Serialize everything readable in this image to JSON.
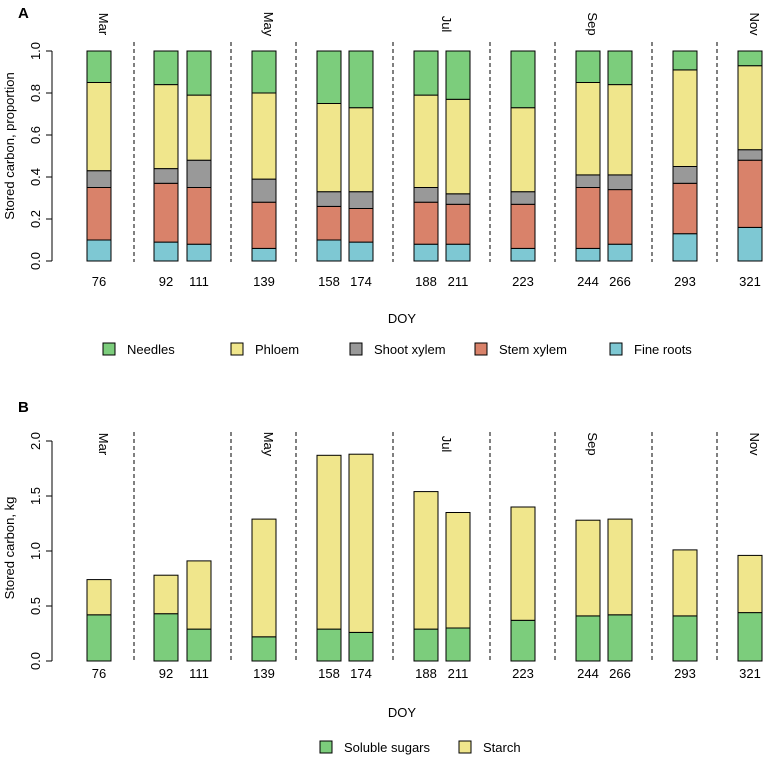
{
  "chart_data": [
    {
      "panel_letter": "A",
      "type": "bar",
      "stacked": true,
      "categories": [
        "76",
        "92",
        "111",
        "139",
        "158",
        "174",
        "188",
        "211",
        "223",
        "244",
        "266",
        "293",
        "321"
      ],
      "series": [
        {
          "name": "Fine roots",
          "color": "#7ec8d3",
          "values": [
            0.1,
            0.09,
            0.08,
            0.06,
            0.1,
            0.09,
            0.08,
            0.08,
            0.06,
            0.06,
            0.08,
            0.13,
            0.16
          ]
        },
        {
          "name": "Stem xylem",
          "color": "#d9826a",
          "values": [
            0.25,
            0.28,
            0.27,
            0.22,
            0.16,
            0.16,
            0.2,
            0.19,
            0.21,
            0.29,
            0.26,
            0.24,
            0.32
          ]
        },
        {
          "name": "Shoot xylem",
          "color": "#999999",
          "values": [
            0.08,
            0.07,
            0.13,
            0.11,
            0.07,
            0.08,
            0.07,
            0.05,
            0.06,
            0.06,
            0.07,
            0.08,
            0.05
          ]
        },
        {
          "name": "Phloem",
          "color": "#f0e68c",
          "values": [
            0.42,
            0.4,
            0.31,
            0.41,
            0.42,
            0.4,
            0.44,
            0.45,
            0.4,
            0.44,
            0.43,
            0.46,
            0.4
          ]
        },
        {
          "name": "Needles",
          "color": "#7ccd7c",
          "values": [
            0.15,
            0.16,
            0.21,
            0.2,
            0.25,
            0.27,
            0.21,
            0.23,
            0.27,
            0.15,
            0.16,
            0.09,
            0.07
          ]
        }
      ],
      "legend_order": [
        "Needles",
        "Phloem",
        "Shoot xylem",
        "Stem xylem",
        "Fine roots"
      ],
      "xlabel": "DOY",
      "ylabel": "Stored carbon, proportion",
      "ylim": [
        0,
        1
      ],
      "yticks": [
        "0.0",
        "0.2",
        "0.4",
        "0.6",
        "0.8",
        "1.0"
      ],
      "months": [
        "Mar",
        "May",
        "Jul",
        "Sep",
        "Nov"
      ],
      "legend": "bottom"
    },
    {
      "panel_letter": "B",
      "type": "bar",
      "stacked": true,
      "categories": [
        "76",
        "92",
        "111",
        "139",
        "158",
        "174",
        "188",
        "211",
        "223",
        "244",
        "266",
        "293",
        "321"
      ],
      "series": [
        {
          "name": "Soluble sugars",
          "color": "#7ccd7c",
          "values": [
            0.42,
            0.43,
            0.29,
            0.22,
            0.29,
            0.26,
            0.29,
            0.3,
            0.37,
            0.41,
            0.42,
            0.41,
            0.44
          ]
        },
        {
          "name": "Starch",
          "color": "#f0e68c",
          "values": [
            0.32,
            0.35,
            0.62,
            1.07,
            1.58,
            1.62,
            1.25,
            1.05,
            1.03,
            0.87,
            0.87,
            0.6,
            0.52
          ]
        }
      ],
      "legend_order": [
        "Soluble sugars",
        "Starch"
      ],
      "xlabel": "DOY",
      "ylabel": "Stored carbon, kg",
      "ylim": [
        0,
        2
      ],
      "yticks": [
        "0.0",
        "0.5",
        "1.0",
        "1.5",
        "2.0"
      ],
      "months": [
        "Mar",
        "May",
        "Jul",
        "Sep",
        "Nov"
      ],
      "legend": "bottom"
    }
  ]
}
